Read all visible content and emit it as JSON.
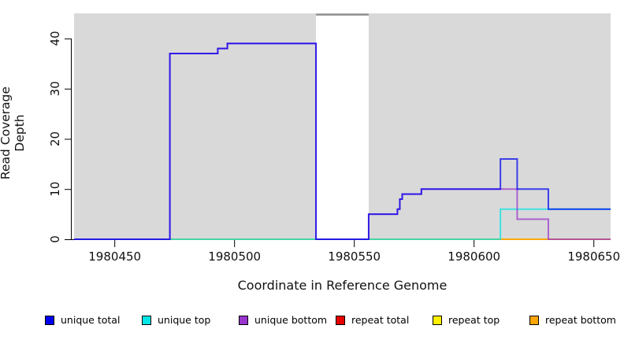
{
  "chart_data": {
    "type": "line",
    "step": true,
    "title": "",
    "xlabel": "Coordinate in Reference Genome",
    "ylabel": "Read Coverage Depth",
    "xlim": [
      1980433,
      1980657
    ],
    "ylim": [
      0,
      45
    ],
    "grid": false,
    "plot_background_color": "#D9D9D9",
    "masked_region": {
      "x_start": 1980534,
      "x_end": 1980556,
      "fill": "#FFFFFF",
      "cap_color": "#8C8C8C"
    },
    "xticks": [
      {
        "value": 1980450,
        "label": "1980450"
      },
      {
        "value": 1980500,
        "label": "1980500"
      },
      {
        "value": 1980550,
        "label": "1980550"
      },
      {
        "value": 1980600,
        "label": "1980600"
      },
      {
        "value": 1980650,
        "label": "1980650"
      }
    ],
    "yticks": [
      {
        "value": 0,
        "label": "0"
      },
      {
        "value": 10,
        "label": "10"
      },
      {
        "value": 20,
        "label": "20"
      },
      {
        "value": 30,
        "label": "30"
      },
      {
        "value": 40,
        "label": "40"
      }
    ],
    "series": [
      {
        "name": "unique total",
        "color": "#0000EE",
        "z": 6,
        "points": [
          [
            1980433,
            0
          ],
          [
            1980473,
            37
          ],
          [
            1980493,
            38
          ],
          [
            1980497,
            39
          ],
          [
            1980534,
            0
          ],
          [
            1980556,
            5
          ],
          [
            1980568,
            6
          ],
          [
            1980569,
            8
          ],
          [
            1980570,
            9
          ],
          [
            1980578,
            10
          ],
          [
            1980611,
            16
          ],
          [
            1980618,
            10
          ],
          [
            1980631,
            6
          ]
        ]
      },
      {
        "name": "unique top",
        "color": "#00E5E5",
        "z": 4,
        "points": [
          [
            1980433,
            0
          ],
          [
            1980611,
            6
          ]
        ]
      },
      {
        "name": "unique bottom",
        "color": "#9933CC",
        "z": 5,
        "points": [
          [
            1980433,
            0
          ],
          [
            1980473,
            37
          ],
          [
            1980493,
            38
          ],
          [
            1980497,
            39
          ],
          [
            1980534,
            0
          ],
          [
            1980556,
            5
          ],
          [
            1980568,
            6
          ],
          [
            1980569,
            8
          ],
          [
            1980570,
            9
          ],
          [
            1980578,
            10
          ],
          [
            1980618,
            4
          ],
          [
            1980631,
            0
          ]
        ]
      },
      {
        "name": "repeat total",
        "color": "#E60000",
        "z": 1,
        "points": [
          [
            1980433,
            0
          ]
        ]
      },
      {
        "name": "repeat top",
        "color": "#FFF000",
        "z": 2,
        "points": [
          [
            1980433,
            0
          ]
        ]
      },
      {
        "name": "repeat bottom",
        "color": "#FFA500",
        "z": 3,
        "points": [
          [
            1980433,
            0
          ]
        ]
      }
    ],
    "legend": {
      "position": "bottom",
      "items": [
        {
          "label": "unique total",
          "color": "#0000EE"
        },
        {
          "label": "unique top",
          "color": "#00E5E5"
        },
        {
          "label": "unique bottom",
          "color": "#9933CC"
        },
        {
          "label": "repeat total",
          "color": "#E60000"
        },
        {
          "label": "repeat top",
          "color": "#FFF000"
        },
        {
          "label": "repeat bottom",
          "color": "#FFA500"
        }
      ]
    }
  }
}
